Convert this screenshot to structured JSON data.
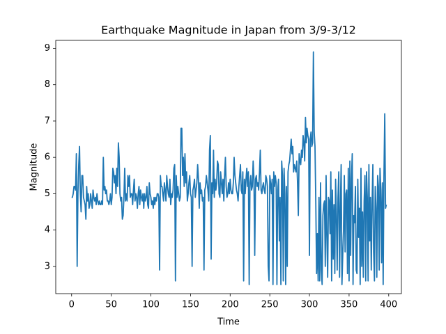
{
  "chart_data": {
    "type": "line",
    "title": "Earthquake Magnitude in Japan from 3/9-3/12",
    "xlabel": "Time",
    "ylabel": "Magnitude",
    "color": "#1f77b4",
    "xlim": [
      -20,
      416
    ],
    "ylim": [
      2.25,
      9.22
    ],
    "xticks": [
      0,
      50,
      100,
      150,
      200,
      250,
      300,
      350,
      400
    ],
    "yticks": [
      3,
      4,
      5,
      6,
      7,
      8,
      9
    ],
    "values": [
      4.9,
      4.9,
      5.0,
      5.2,
      5.2,
      5.1,
      6.1,
      3.0,
      5.0,
      5.8,
      6.3,
      5.0,
      4.5,
      5.5,
      5.5,
      4.9,
      4.8,
      4.7,
      4.3,
      5.2,
      4.8,
      5.0,
      4.6,
      4.7,
      5.0,
      4.8,
      4.6,
      5.1,
      4.9,
      4.8,
      4.9,
      4.7,
      5.0,
      4.8,
      4.7,
      4.8,
      4.7,
      4.7,
      4.8,
      4.7,
      6.0,
      5.1,
      5.2,
      5.0,
      5.1,
      4.8,
      4.8,
      4.7,
      4.8,
      5.0,
      4.7,
      4.9,
      5.7,
      5.6,
      5.3,
      5.5,
      5.0,
      5.7,
      5.2,
      6.4,
      6.0,
      5.0,
      4.8,
      4.9,
      4.3,
      4.4,
      4.9,
      5.7,
      4.8,
      5.0,
      4.8,
      5.5,
      5.2,
      5.5,
      4.9,
      5.0,
      5.0,
      4.7,
      5.1,
      5.4,
      4.8,
      5.0,
      4.9,
      4.6,
      5.0,
      5.2,
      4.7,
      5.1,
      4.9,
      4.8,
      5.0,
      4.6,
      5.0,
      4.8,
      4.9,
      5.2,
      4.7,
      4.6,
      5.3,
      5.0,
      4.9,
      4.7,
      4.8,
      4.6,
      4.9,
      4.7,
      4.9,
      4.8,
      5.0,
      5.0,
      4.9,
      2.9,
      5.5,
      5.2,
      5.2,
      5.0,
      4.8,
      5.3,
      5.1,
      4.8,
      5.5,
      5.2,
      5.0,
      4.9,
      5.4,
      4.7,
      5.0,
      4.9,
      5.1,
      5.7,
      5.8,
      2.6,
      5.5,
      4.9,
      5.2,
      5.0,
      4.8,
      4.9,
      6.8,
      6.8,
      5.5,
      6.0,
      5.2,
      6.1,
      5.3,
      5.6,
      4.8,
      5.0,
      5.3,
      5.5,
      5.0,
      4.9,
      3.0,
      5.1,
      5.2,
      5.4,
      4.9,
      5.1,
      5.3,
      5.8,
      5.4,
      4.6,
      5.3,
      5.0,
      5.1,
      4.8,
      4.9,
      2.9,
      5.1,
      5.2,
      5.5,
      5.3,
      5.1,
      4.8,
      6.2,
      6.6,
      3.2,
      5.3,
      5.0,
      6.2,
      4.9,
      5.4,
      5.1,
      5.3,
      5.9,
      5.8,
      5.0,
      4.9,
      5.6,
      5.3,
      5.0,
      5.4,
      4.8,
      5.5,
      6.0,
      5.2,
      4.9,
      5.0,
      5.3,
      5.0,
      5.4,
      5.1,
      5.0,
      5.0,
      5.3,
      6.0,
      5.5,
      5.3,
      5.1,
      5.0,
      4.8,
      5.2,
      5.5,
      5.8,
      5.1,
      5.0,
      5.6,
      2.6,
      5.4,
      5.0,
      5.4,
      5.7,
      5.2,
      5.6,
      2.5,
      5.3,
      5.5,
      5.1,
      5.2,
      5.9,
      5.4,
      3.3,
      5.4,
      5.5,
      5.2,
      5.3,
      5.1,
      5.6,
      6.2,
      5.1,
      5.0,
      5.2,
      5.3,
      5.1,
      5.0,
      5.5,
      5.4,
      5.2,
      3.0,
      2.6,
      5.5,
      5.3,
      5.0,
      5.4,
      2.5,
      5.6,
      5.2,
      5.5,
      5.3,
      2.5,
      5.1,
      5.4,
      3.7,
      4.9,
      2.5,
      5.9,
      5.5,
      2.6,
      5.7,
      5.0,
      2.5,
      5.2,
      3.0,
      5.6,
      5.8,
      5.9,
      6.2,
      6.5,
      6.1,
      6.3,
      5.6,
      5.8,
      5.7,
      5.6,
      5.9,
      5.3,
      4.4,
      6.1,
      5.9,
      5.8,
      6.2,
      6.0,
      6.6,
      6.4,
      5.9,
      7.1,
      6.4,
      6.8,
      6.6,
      6.5,
      3.3,
      6.5,
      6.7,
      6.3,
      6.4,
      8.9,
      6.7,
      6.3,
      4.8,
      2.8,
      3.9,
      2.6,
      4.9,
      2.6,
      5.3,
      2.9,
      2.5,
      4.4,
      4.7,
      4.8,
      3.0,
      5.5,
      3.8,
      2.7,
      4.9,
      4.8,
      3.9,
      5.6,
      2.6,
      5.1,
      3.2,
      4.7,
      2.8,
      5.4,
      4.4,
      2.9,
      4.9,
      5.6,
      2.7,
      4.6,
      5.8,
      2.5,
      3.3,
      4.0,
      5.5,
      3.4,
      5.0,
      5.1,
      2.8,
      5.7,
      2.6,
      5.9,
      3.3,
      5.4,
      6.1,
      2.5,
      4.4,
      4.2,
      5.2,
      2.9,
      2.8,
      5.4,
      3.8,
      4.6,
      2.5,
      5.7,
      3.0,
      4.5,
      2.7,
      4.8,
      5.5,
      2.6,
      5.6,
      4.9,
      2.6,
      5.8,
      3.7,
      4.9,
      2.9,
      4.7,
      5.8,
      3.4,
      2.6,
      5.2,
      4.6,
      2.7,
      5.5,
      5.2,
      2.9,
      5.7,
      5.1,
      3.1,
      5.3,
      2.5,
      5.5,
      7.2,
      4.6,
      4.7
    ]
  }
}
